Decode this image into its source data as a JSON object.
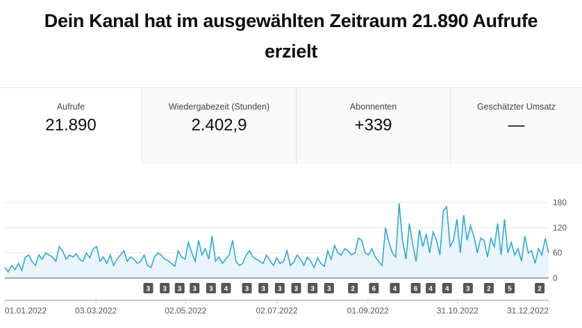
{
  "header": {
    "title": "Dein Kanal hat im ausgewählten Zeitraum 21.890 Aufrufe erzielt"
  },
  "metrics": [
    {
      "label": "Aufrufe",
      "value": "21.890"
    },
    {
      "label": "Wiedergabezeit (Stunden)",
      "value": "2.402,9"
    },
    {
      "label": "Abonnenten",
      "value": "+339"
    },
    {
      "label": "Geschätzter Umsatz",
      "value": "—"
    }
  ],
  "colors": {
    "line": "#2fa8d4",
    "fill": "#eaf5fb",
    "badge": "#555555"
  },
  "chart_data": {
    "type": "area",
    "title": "",
    "xlabel": "",
    "ylabel": "Aufrufe",
    "ylim": [
      0,
      180
    ],
    "yticks": [
      "180",
      "120",
      "60",
      "0"
    ],
    "ytick_values": [
      180,
      120,
      60,
      0
    ],
    "xticks": [
      {
        "label": "01.01.2022",
        "day": 0
      },
      {
        "label": "03.03.2022",
        "day": 61
      },
      {
        "label": "02.05.2022",
        "day": 121
      },
      {
        "label": "02.07.2022",
        "day": 182
      },
      {
        "label": "01.09.2022",
        "day": 243
      },
      {
        "label": "31.10.2022",
        "day": 303
      },
      {
        "label": "31.12.2022",
        "day": 364
      }
    ],
    "day_range": [
      0,
      364
    ],
    "series": [
      {
        "name": "Aufrufe",
        "values": [
          25,
          15,
          30,
          20,
          35,
          18,
          50,
          55,
          40,
          30,
          55,
          45,
          60,
          55,
          50,
          40,
          75,
          65,
          45,
          55,
          50,
          58,
          45,
          40,
          60,
          48,
          70,
          75,
          40,
          50,
          35,
          55,
          30,
          45,
          55,
          65,
          40,
          50,
          45,
          35,
          40,
          55,
          30,
          25,
          50,
          60,
          55,
          45,
          42,
          35,
          28,
          65,
          50,
          45,
          85,
          60,
          40,
          90,
          55,
          70,
          45,
          100,
          40,
          50,
          35,
          45,
          55,
          90,
          40,
          30,
          35,
          55,
          65,
          50,
          45,
          40,
          35,
          55,
          42,
          30,
          48,
          35,
          40,
          65,
          30,
          38,
          55,
          45,
          30,
          50,
          40,
          25,
          48,
          35,
          28,
          65,
          45,
          78,
          60,
          55,
          70,
          65,
          55,
          60,
          95,
          90,
          60,
          55,
          70,
          50,
          40,
          30,
          120,
          85,
          60,
          50,
          178,
          90,
          45,
          130,
          80,
          40,
          115,
          75,
          105,
          60,
          110,
          90,
          55,
          160,
          170,
          75,
          90,
          140,
          60,
          150,
          90,
          125,
          100,
          60,
          95,
          90,
          50,
          95,
          75,
          130,
          55,
          140,
          60,
          85,
          55,
          70,
          40,
          100,
          60,
          65,
          35,
          70,
          55,
          95,
          60
        ]
      }
    ],
    "markers": [
      {
        "day": 96,
        "count": "3"
      },
      {
        "day": 107,
        "count": "3"
      },
      {
        "day": 117,
        "count": "3"
      },
      {
        "day": 127,
        "count": "3"
      },
      {
        "day": 138,
        "count": "3"
      },
      {
        "day": 148,
        "count": "4"
      },
      {
        "day": 162,
        "count": "3"
      },
      {
        "day": 173,
        "count": "3"
      },
      {
        "day": 184,
        "count": "3"
      },
      {
        "day": 195,
        "count": "3"
      },
      {
        "day": 206,
        "count": "3"
      },
      {
        "day": 217,
        "count": "3"
      },
      {
        "day": 233,
        "count": "2"
      },
      {
        "day": 247,
        "count": "6"
      },
      {
        "day": 261,
        "count": "4"
      },
      {
        "day": 275,
        "count": "6"
      },
      {
        "day": 285,
        "count": "4"
      },
      {
        "day": 296,
        "count": "4"
      },
      {
        "day": 310,
        "count": "3"
      },
      {
        "day": 324,
        "count": "2"
      },
      {
        "day": 338,
        "count": "5"
      },
      {
        "day": 358,
        "count": "2"
      }
    ]
  }
}
